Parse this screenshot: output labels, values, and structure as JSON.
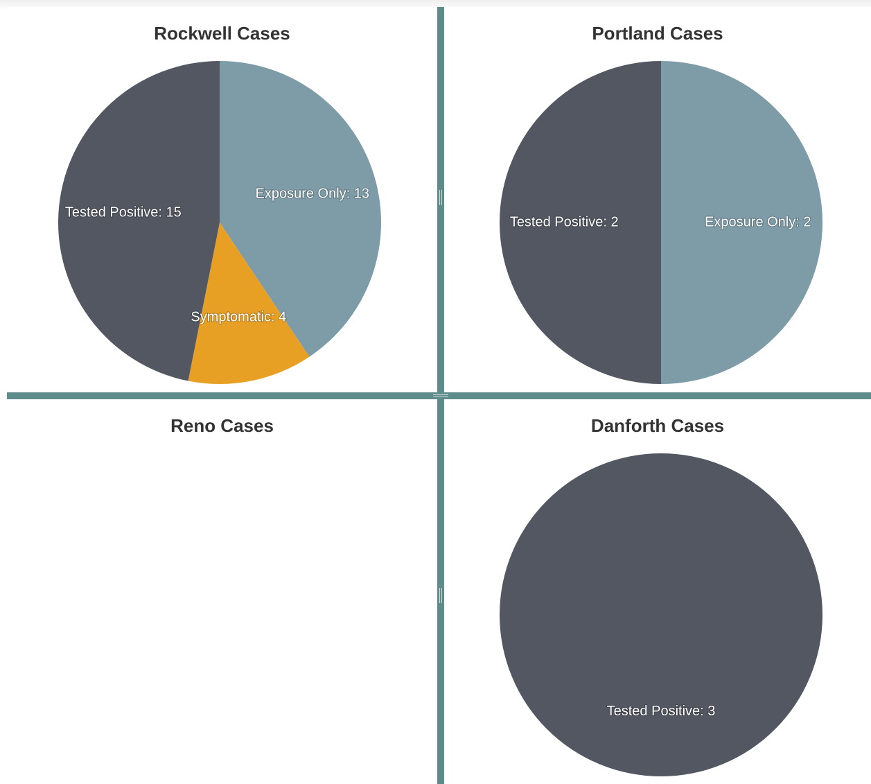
{
  "chart_data": [
    {
      "type": "pie",
      "title": "Rockwell Cases",
      "slices": [
        {
          "label": "Exposure Only",
          "value": 13,
          "color": "#7e9ca7",
          "text": "Exposure Only: 13"
        },
        {
          "label": "Symptomatic",
          "value": 4,
          "color": "#e8a024",
          "text": "Symptomatic: 4"
        },
        {
          "label": "Tested Positive",
          "value": 15,
          "color": "#525761",
          "text": "Tested Positive: 15"
        }
      ]
    },
    {
      "type": "pie",
      "title": "Portland Cases",
      "slices": [
        {
          "label": "Exposure Only",
          "value": 2,
          "color": "#7e9ca7",
          "text": "Exposure Only: 2"
        },
        {
          "label": "Tested Positive",
          "value": 2,
          "color": "#525761",
          "text": "Tested Positive: 2"
        }
      ]
    },
    {
      "type": "pie",
      "title": "Reno Cases",
      "slices": []
    },
    {
      "type": "pie",
      "title": "Danforth Cases",
      "slices": [
        {
          "label": "Tested Positive",
          "value": 3,
          "color": "#525761",
          "text": "Tested Positive: 3"
        }
      ]
    }
  ],
  "colors": {
    "divider": "#5e8c8a",
    "exposure_only": "#7e9ca7",
    "symptomatic": "#e8a024",
    "tested_positive": "#525761"
  }
}
